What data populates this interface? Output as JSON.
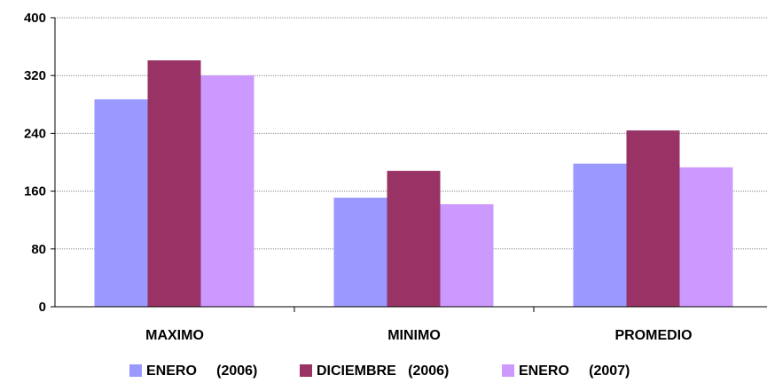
{
  "chart_data": {
    "type": "bar",
    "categories": [
      "MAXIMO",
      "MINIMO",
      "PROMEDIO"
    ],
    "series": [
      {
        "name": "ENERO     (2006)",
        "values": [
          287,
          151,
          198
        ],
        "color": "#9999ff"
      },
      {
        "name": "DICIEMBRE   (2006)",
        "values": [
          341,
          188,
          244
        ],
        "color": "#993366"
      },
      {
        "name": "ENERO     (2007)",
        "values": [
          320,
          142,
          193
        ],
        "color": "#cc99ff"
      }
    ],
    "y_ticks": [
      "0",
      "80",
      "160",
      "240",
      "320",
      "400"
    ],
    "ylim": [
      0,
      400
    ],
    "grid": true,
    "legend": "bottom",
    "title": "",
    "xlabel": "",
    "ylabel": ""
  }
}
